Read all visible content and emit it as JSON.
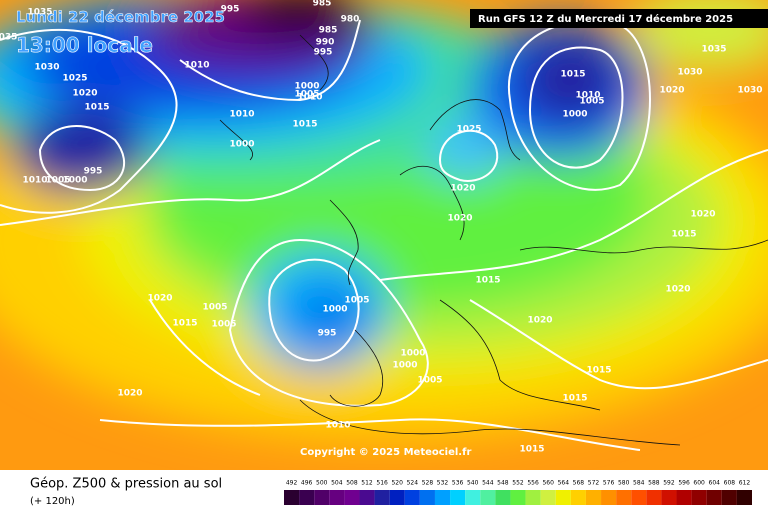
{
  "header": {
    "date": "Lundi 22 décembre 2025",
    "time": "13:00 locale",
    "run": "Run GFS 12 Z du Mercredi 17 décembre 2025"
  },
  "copyright": "Copyright © 2025 Meteociel.fr",
  "footer": {
    "title": "Géop. Z500 & pression au sol",
    "lead": "(+ 120h)"
  },
  "legend": {
    "labels": [
      "492",
      "496",
      "500",
      "504",
      "508",
      "512",
      "516",
      "520",
      "524",
      "528",
      "532",
      "536",
      "540",
      "544",
      "548",
      "552",
      "556",
      "560",
      "564",
      "568",
      "572",
      "576",
      "580",
      "584",
      "588",
      "592",
      "596",
      "600",
      "604",
      "608",
      "612"
    ],
    "colors": [
      "#2a0030",
      "#3a0050",
      "#500068",
      "#660080",
      "#700090",
      "#4a0a90",
      "#2020a0",
      "#0020c0",
      "#0040e0",
      "#0070f0",
      "#00a0ff",
      "#00d0ff",
      "#40f0e0",
      "#50f0a0",
      "#40e060",
      "#60f040",
      "#a0f040",
      "#d0f040",
      "#f0f000",
      "#ffd000",
      "#ffb000",
      "#ff9000",
      "#ff7000",
      "#ff5000",
      "#f03000",
      "#d01000",
      "#b00000",
      "#900000",
      "#700000",
      "#500000",
      "#300000"
    ]
  },
  "isobars": [
    "1035",
    "035",
    "1030",
    "1025",
    "1020",
    "1015",
    "995",
    "1010",
    "1005",
    "1000",
    "995",
    "985",
    "980",
    "985",
    "990",
    "995",
    "1010",
    "1000",
    "1005",
    "1010",
    "1010",
    "1000",
    "1015",
    "1025",
    "1020",
    "1020",
    "1015",
    "1010",
    "1005",
    "1000",
    "1035",
    "1030",
    "1020",
    "1030",
    "1020",
    "1015",
    "1015",
    "1020",
    "1020",
    "1015",
    "1015",
    "1020",
    "1015",
    "1005",
    "1005",
    "1000",
    "1005",
    "995",
    "1000",
    "1000",
    "1005",
    "1020",
    "1010",
    "1015"
  ]
}
